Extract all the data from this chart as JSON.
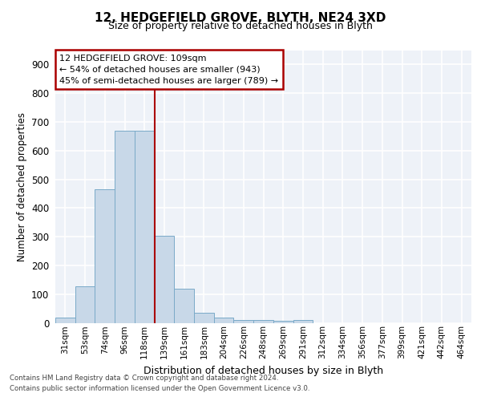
{
  "title1": "12, HEDGEFIELD GROVE, BLYTH, NE24 3XD",
  "title2": "Size of property relative to detached houses in Blyth",
  "xlabel": "Distribution of detached houses by size in Blyth",
  "ylabel": "Number of detached properties",
  "bin_labels": [
    "31sqm",
    "53sqm",
    "74sqm",
    "96sqm",
    "118sqm",
    "139sqm",
    "161sqm",
    "183sqm",
    "204sqm",
    "226sqm",
    "248sqm",
    "269sqm",
    "291sqm",
    "312sqm",
    "334sqm",
    "356sqm",
    "377sqm",
    "399sqm",
    "421sqm",
    "442sqm",
    "464sqm"
  ],
  "bar_heights": [
    17,
    127,
    465,
    670,
    670,
    302,
    118,
    35,
    17,
    10,
    10,
    8,
    10,
    0,
    0,
    0,
    0,
    0,
    0,
    0,
    0
  ],
  "bar_color": "#c8d8e8",
  "bar_edge_color": "#7aaac8",
  "vline_x": 4.5,
  "vline_color": "#aa0000",
  "annotation_line1": "12 HEDGEFIELD GROVE: 109sqm",
  "annotation_line2": "← 54% of detached houses are smaller (943)",
  "annotation_line3": "45% of semi-detached houses are larger (789) →",
  "annotation_box_color": "#ffffff",
  "annotation_box_edge": "#aa0000",
  "ylim": [
    0,
    950
  ],
  "yticks": [
    0,
    100,
    200,
    300,
    400,
    500,
    600,
    700,
    800,
    900
  ],
  "footer1": "Contains HM Land Registry data © Crown copyright and database right 2024.",
  "footer2": "Contains public sector information licensed under the Open Government Licence v3.0.",
  "bg_color": "#eef2f8",
  "grid_color": "#ffffff"
}
